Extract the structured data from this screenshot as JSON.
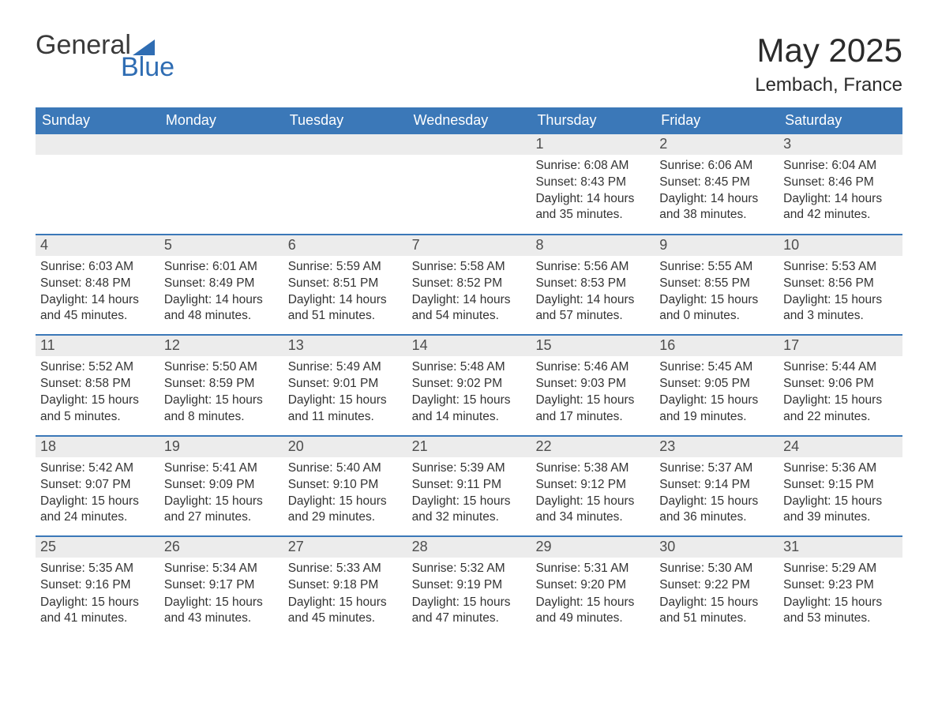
{
  "logo": {
    "text_top": "General",
    "text_bottom": "Blue",
    "accent_color": "#2f6db3",
    "text_color": "#3a3a3a"
  },
  "title": "May 2025",
  "subtitle": "Lembach, France",
  "colors": {
    "header_bg": "#3b78b8",
    "header_text": "#ffffff",
    "daynum_bg": "#ececec",
    "daynum_text": "#4d4d4d",
    "body_text": "#333333",
    "week_border": "#3b78b8",
    "background": "#ffffff"
  },
  "day_headers": [
    "Sunday",
    "Monday",
    "Tuesday",
    "Wednesday",
    "Thursday",
    "Friday",
    "Saturday"
  ],
  "label_sunrise": "Sunrise:",
  "label_sunset": "Sunset:",
  "label_daylight_prefix": "Daylight:",
  "weeks": [
    [
      null,
      null,
      null,
      null,
      {
        "n": "1",
        "sunrise": "6:08 AM",
        "sunset": "8:43 PM",
        "daylight": "14 hours and 35 minutes."
      },
      {
        "n": "2",
        "sunrise": "6:06 AM",
        "sunset": "8:45 PM",
        "daylight": "14 hours and 38 minutes."
      },
      {
        "n": "3",
        "sunrise": "6:04 AM",
        "sunset": "8:46 PM",
        "daylight": "14 hours and 42 minutes."
      }
    ],
    [
      {
        "n": "4",
        "sunrise": "6:03 AM",
        "sunset": "8:48 PM",
        "daylight": "14 hours and 45 minutes."
      },
      {
        "n": "5",
        "sunrise": "6:01 AM",
        "sunset": "8:49 PM",
        "daylight": "14 hours and 48 minutes."
      },
      {
        "n": "6",
        "sunrise": "5:59 AM",
        "sunset": "8:51 PM",
        "daylight": "14 hours and 51 minutes."
      },
      {
        "n": "7",
        "sunrise": "5:58 AM",
        "sunset": "8:52 PM",
        "daylight": "14 hours and 54 minutes."
      },
      {
        "n": "8",
        "sunrise": "5:56 AM",
        "sunset": "8:53 PM",
        "daylight": "14 hours and 57 minutes."
      },
      {
        "n": "9",
        "sunrise": "5:55 AM",
        "sunset": "8:55 PM",
        "daylight": "15 hours and 0 minutes."
      },
      {
        "n": "10",
        "sunrise": "5:53 AM",
        "sunset": "8:56 PM",
        "daylight": "15 hours and 3 minutes."
      }
    ],
    [
      {
        "n": "11",
        "sunrise": "5:52 AM",
        "sunset": "8:58 PM",
        "daylight": "15 hours and 5 minutes."
      },
      {
        "n": "12",
        "sunrise": "5:50 AM",
        "sunset": "8:59 PM",
        "daylight": "15 hours and 8 minutes."
      },
      {
        "n": "13",
        "sunrise": "5:49 AM",
        "sunset": "9:01 PM",
        "daylight": "15 hours and 11 minutes."
      },
      {
        "n": "14",
        "sunrise": "5:48 AM",
        "sunset": "9:02 PM",
        "daylight": "15 hours and 14 minutes."
      },
      {
        "n": "15",
        "sunrise": "5:46 AM",
        "sunset": "9:03 PM",
        "daylight": "15 hours and 17 minutes."
      },
      {
        "n": "16",
        "sunrise": "5:45 AM",
        "sunset": "9:05 PM",
        "daylight": "15 hours and 19 minutes."
      },
      {
        "n": "17",
        "sunrise": "5:44 AM",
        "sunset": "9:06 PM",
        "daylight": "15 hours and 22 minutes."
      }
    ],
    [
      {
        "n": "18",
        "sunrise": "5:42 AM",
        "sunset": "9:07 PM",
        "daylight": "15 hours and 24 minutes."
      },
      {
        "n": "19",
        "sunrise": "5:41 AM",
        "sunset": "9:09 PM",
        "daylight": "15 hours and 27 minutes."
      },
      {
        "n": "20",
        "sunrise": "5:40 AM",
        "sunset": "9:10 PM",
        "daylight": "15 hours and 29 minutes."
      },
      {
        "n": "21",
        "sunrise": "5:39 AM",
        "sunset": "9:11 PM",
        "daylight": "15 hours and 32 minutes."
      },
      {
        "n": "22",
        "sunrise": "5:38 AM",
        "sunset": "9:12 PM",
        "daylight": "15 hours and 34 minutes."
      },
      {
        "n": "23",
        "sunrise": "5:37 AM",
        "sunset": "9:14 PM",
        "daylight": "15 hours and 36 minutes."
      },
      {
        "n": "24",
        "sunrise": "5:36 AM",
        "sunset": "9:15 PM",
        "daylight": "15 hours and 39 minutes."
      }
    ],
    [
      {
        "n": "25",
        "sunrise": "5:35 AM",
        "sunset": "9:16 PM",
        "daylight": "15 hours and 41 minutes."
      },
      {
        "n": "26",
        "sunrise": "5:34 AM",
        "sunset": "9:17 PM",
        "daylight": "15 hours and 43 minutes."
      },
      {
        "n": "27",
        "sunrise": "5:33 AM",
        "sunset": "9:18 PM",
        "daylight": "15 hours and 45 minutes."
      },
      {
        "n": "28",
        "sunrise": "5:32 AM",
        "sunset": "9:19 PM",
        "daylight": "15 hours and 47 minutes."
      },
      {
        "n": "29",
        "sunrise": "5:31 AM",
        "sunset": "9:20 PM",
        "daylight": "15 hours and 49 minutes."
      },
      {
        "n": "30",
        "sunrise": "5:30 AM",
        "sunset": "9:22 PM",
        "daylight": "15 hours and 51 minutes."
      },
      {
        "n": "31",
        "sunrise": "5:29 AM",
        "sunset": "9:23 PM",
        "daylight": "15 hours and 53 minutes."
      }
    ]
  ]
}
